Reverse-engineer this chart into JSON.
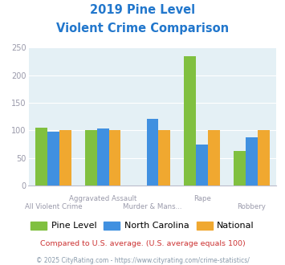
{
  "title_line1": "2019 Pine Level",
  "title_line2": "Violent Crime Comparison",
  "categories": [
    "All Violent Crime",
    "Aggravated Assault",
    "Murder & Mans...",
    "Rape",
    "Robbery"
  ],
  "series": {
    "Pine Level": [
      105,
      100,
      0,
      235,
      63
    ],
    "North Carolina": [
      98,
      104,
      121,
      74,
      88
    ],
    "National": [
      101,
      100,
      100,
      101,
      101
    ]
  },
  "colors": {
    "Pine Level": "#80c040",
    "North Carolina": "#4090e0",
    "National": "#f0a830"
  },
  "ylim": [
    0,
    250
  ],
  "yticks": [
    0,
    50,
    100,
    150,
    200,
    250
  ],
  "title_color": "#2277cc",
  "title_fontsize": 10.5,
  "axis_label_color": "#9999aa",
  "bg_color": "#e4f0f5",
  "footnote1": "Compared to U.S. average. (U.S. average equals 100)",
  "footnote2": "© 2025 CityRating.com - https://www.cityrating.com/crime-statistics/",
  "footnote1_color": "#cc3333",
  "footnote2_color": "#8899aa",
  "top_row_labels": {
    "1": "Aggravated Assault",
    "3": "Rape"
  },
  "bot_row_labels": {
    "0": "All Violent Crime",
    "2": "Murder & Mans...",
    "4": "Robbery"
  }
}
